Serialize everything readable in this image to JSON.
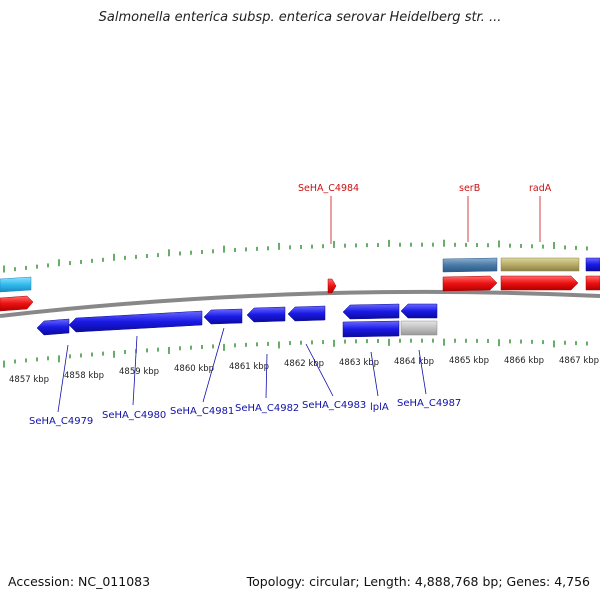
{
  "title": "Salmonella enterica subsp. enterica serovar Heidelberg str. ...",
  "footer": {
    "accession": "Accession: NC_011083",
    "stats": "Topology: circular; Length: 4,888,768 bp; Genes: 4,756"
  },
  "colors": {
    "backbone": "#888888",
    "tick": "#2a8a2a",
    "forward_gene": "#ee1111",
    "reverse_gene": "#1a1ae6",
    "light_blue_gene": "#33bbee",
    "steel_blue_gene": "#4a7aa8",
    "khaki_gene": "#b8ac68",
    "gray_gene": "#c0c0c0",
    "label_red": "#cc1111",
    "label_blue": "#1111aa"
  },
  "kbp_ticks": [
    "4857 kbp",
    "4858 kbp",
    "4859 kbp",
    "4860 kbp",
    "4861 kbp",
    "4862 kbp",
    "4863 kbp",
    "4864 kbp",
    "4865 kbp",
    "4866 kbp",
    "4867 kbp"
  ],
  "top_labels": [
    "SeHA_C4984",
    "serB",
    "radA"
  ],
  "bottom_labels": [
    "SeHA_C4979",
    "SeHA_C4980",
    "SeHA_C4981",
    "SeHA_C4982",
    "SeHA_C4983",
    "lplA",
    "SeHA_C4987"
  ]
}
